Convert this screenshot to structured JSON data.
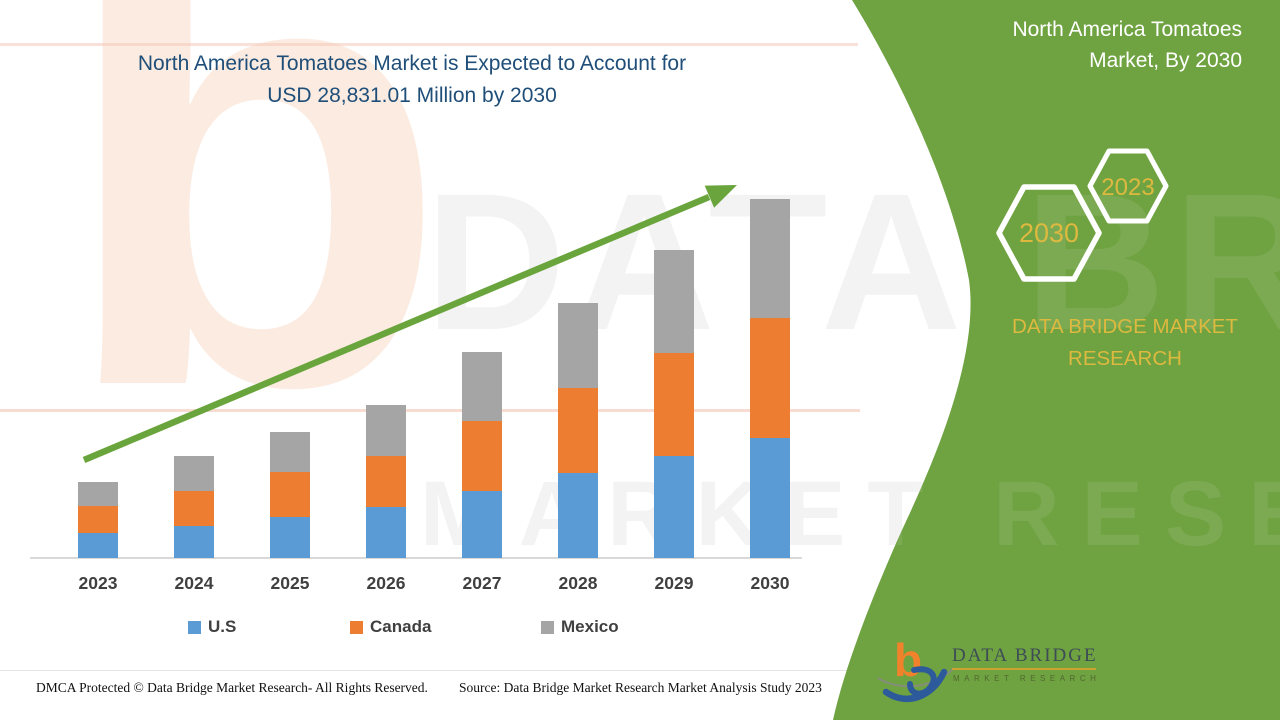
{
  "title": {
    "line1": "North America Tomatoes Market is Expected to Account for",
    "line2": "USD 28,831.01 Million by 2030"
  },
  "chart_data": {
    "type": "bar",
    "stacked": true,
    "title": "North America Tomatoes Market is Expected to Account for USD 28,831.01 Million by 2030",
    "categories": [
      "2023",
      "2024",
      "2025",
      "2026",
      "2027",
      "2028",
      "2029",
      "2030"
    ],
    "series": [
      {
        "name": "U.S",
        "color": "#5b9bd5",
        "values": [
          2000,
          2605,
          3330,
          4090,
          5415,
          6815,
          8220,
          9620
        ]
      },
      {
        "name": "Canada",
        "color": "#ed7d31",
        "values": [
          2150,
          2765,
          3570,
          4130,
          5615,
          6815,
          8220,
          9665
        ]
      },
      {
        "name": "Mexico",
        "color": "#a5a5a5",
        "values": [
          1985,
          2805,
          3250,
          4090,
          5535,
          6855,
          8225,
          9546
        ]
      }
    ],
    "totals_estimated": [
      6135,
      8175,
      10150,
      12310,
      16565,
      20485,
      24665,
      28831
    ],
    "units": "USD Million (segment values estimated from bar heights; 2030 total labeled 28,831.01)",
    "ylabel": "",
    "xlabel": "",
    "value_axis_hidden": true,
    "grid": false,
    "legend_position": "bottom",
    "trend_arrow": "up"
  },
  "panel": {
    "title_line1": "North America Tomatoes",
    "title_line2": "Market, By 2030",
    "hex_large_label": "2030",
    "hex_small_label": "2023",
    "brand_line1": "DATA BRIDGE MARKET",
    "brand_line2": "RESEARCH"
  },
  "logo": {
    "glyph": "b",
    "title": "DATA BRIDGE",
    "subtitle": "MARKET RESEARCH"
  },
  "watermark": {
    "glyph": "b",
    "text_line1": "DATA BRIDGE",
    "text_line2": "MARKET RESEARCH"
  },
  "footer": {
    "dmca": "DMCA Protected © Data Bridge Market Research- All Rights Reserved.",
    "source": "Source: Data Bridge Market Research Market Analysis Study 2023"
  },
  "colors": {
    "title_text": "#1f4e79",
    "us": "#5b9bd5",
    "canada": "#ed7d31",
    "mexico": "#a5a5a5",
    "arrow_green": "#69a53c",
    "panel_green": "#6fa241",
    "gold": "#ddb93f",
    "axis_label": "#404040"
  }
}
